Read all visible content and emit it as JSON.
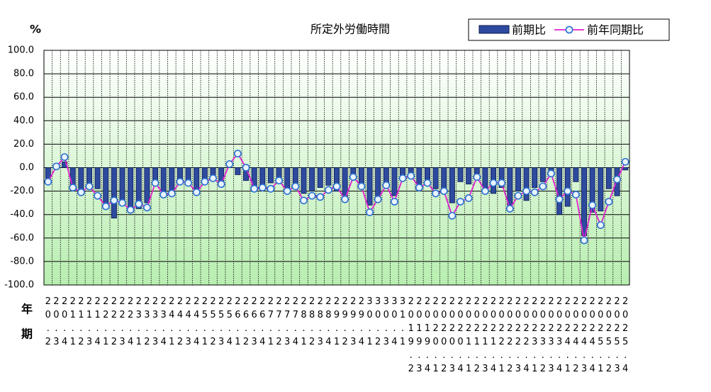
{
  "chart_data": {
    "type": "bar",
    "title": "所定外労働時間",
    "y_label": "%",
    "x_row_labels": [
      "年",
      "期"
    ],
    "categories": [
      "20.2",
      "20.3",
      "20.4",
      "21.1",
      "21.2",
      "21.3",
      "21.4",
      "22.1",
      "22.2",
      "22.3",
      "22.4",
      "23.1",
      "23.2",
      "23.3",
      "23.4",
      "24.1",
      "24.2",
      "24.3",
      "24.4",
      "25.1",
      "25.2",
      "25.3",
      "25.4",
      "26.1",
      "26.2",
      "26.3",
      "26.4",
      "27.1",
      "27.2",
      "27.3",
      "27.4",
      "28.1",
      "28.2",
      "28.3",
      "28.4",
      "29.1",
      "29.2",
      "29.3",
      "29.4",
      "30.1",
      "30.2",
      "30.3",
      "30.4",
      "31.1",
      "2019.2",
      "2019.3",
      "2019.4",
      "2020.1",
      "2020.2",
      "2020.3",
      "2020.4",
      "2021.1",
      "2021.2",
      "2021.3",
      "2021.4",
      "2022.1",
      "2022.2",
      "2022.3",
      "2022.4",
      "2023.1",
      "2023.2",
      "2023.3",
      "2023.4",
      "2024.1",
      "2024.2",
      "2024.3",
      "2024.4",
      "2025.1",
      "2025.2",
      "2025.3",
      "2025.4"
    ],
    "series": [
      {
        "name": "前期比",
        "type": "bar",
        "color": "#2e4a9e",
        "values": [
          -9,
          2,
          5,
          -15,
          -20,
          -15,
          -18,
          -33,
          -43,
          -28,
          -38,
          -35,
          -30,
          -12,
          -20,
          -21,
          -10,
          -13,
          -20,
          -12,
          -10,
          -13,
          0,
          -6,
          -11,
          -18,
          -17,
          -13,
          -12,
          -18,
          -14,
          -22,
          -20,
          -17,
          -15,
          -20,
          -26,
          -6,
          -14,
          -32,
          -26,
          -13,
          -24,
          -8,
          -5,
          -15,
          -10,
          -18,
          -20,
          -30,
          -12,
          -14,
          -5,
          -17,
          -22,
          -17,
          -32,
          -20,
          -28,
          -17,
          -12,
          -6,
          -40,
          -33,
          -12,
          -58,
          -38,
          -37,
          -18,
          -24,
          -2
        ]
      },
      {
        "name": "前年同期比",
        "type": "line",
        "color": "#e020d0",
        "values": [
          -12,
          1,
          9,
          -17,
          -21,
          -16,
          -24,
          -33,
          -28,
          -30,
          -36,
          -31,
          -34,
          -13,
          -23,
          -22,
          -12,
          -13,
          -21,
          -12,
          -9,
          -14,
          3,
          12,
          0,
          -18,
          -17,
          -18,
          -11,
          -20,
          -16,
          -28,
          -24,
          -25,
          -19,
          -16,
          -27,
          -8,
          -16,
          -38,
          -27,
          -15,
          -29,
          -9,
          -7,
          -17,
          -13,
          -22,
          -20,
          -41,
          -29,
          -26,
          -8,
          -20,
          -13,
          -13,
          -35,
          -24,
          -20,
          -21,
          -16,
          -5,
          -27,
          -20,
          -23,
          -62,
          -32,
          -49,
          -29,
          -10,
          5
        ]
      }
    ],
    "ylim": [
      -100,
      100
    ],
    "yticks": [
      {
        "value": 100,
        "label": "100.0"
      },
      {
        "value": 80,
        "label": "80.0"
      },
      {
        "value": 60,
        "label": "60.0"
      },
      {
        "value": 40,
        "label": "40.0"
      },
      {
        "value": 20,
        "label": "20.0"
      },
      {
        "value": 0,
        "label": "0.0"
      },
      {
        "value": -20,
        "label": "-20.0"
      },
      {
        "value": -40,
        "label": "-40.0"
      },
      {
        "value": -60,
        "label": "-60.0"
      },
      {
        "value": -80,
        "label": "-80.0"
      },
      {
        "value": -100,
        "label": "-100.0"
      }
    ],
    "grid": true,
    "legend": "top-right"
  }
}
